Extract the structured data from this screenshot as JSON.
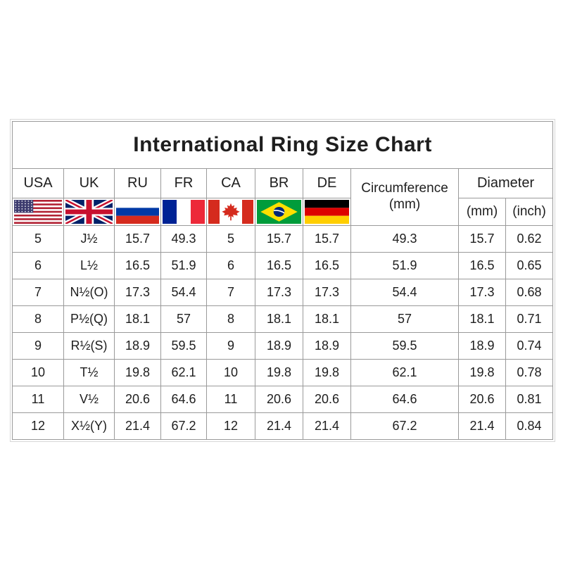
{
  "title": "International Ring Size Chart",
  "table": {
    "header": {
      "country_columns": [
        "USA",
        "UK",
        "RU",
        "FR",
        "CA",
        "BR",
        "DE"
      ],
      "circumference_label": "Circumference",
      "circumference_unit": "(mm)",
      "diameter_label": "Diameter",
      "diameter_units": [
        "(mm)",
        "(inch)"
      ]
    },
    "flag_icons": [
      "us-flag-icon",
      "uk-flag-icon",
      "ru-flag-icon",
      "fr-flag-icon",
      "ca-flag-icon",
      "br-flag-icon",
      "de-flag-icon"
    ]
  },
  "chart_data": {
    "type": "table",
    "title": "International Ring Size Chart",
    "columns": [
      "USA",
      "UK",
      "RU",
      "FR",
      "CA",
      "BR",
      "DE",
      "Circumference (mm)",
      "Diameter (mm)",
      "Diameter (inch)"
    ],
    "rows": [
      [
        "5",
        "J½",
        "15.7",
        "49.3",
        "5",
        "15.7",
        "15.7",
        "49.3",
        "15.7",
        "0.62"
      ],
      [
        "6",
        "L½",
        "16.5",
        "51.9",
        "6",
        "16.5",
        "16.5",
        "51.9",
        "16.5",
        "0.65"
      ],
      [
        "7",
        "N½(O)",
        "17.3",
        "54.4",
        "7",
        "17.3",
        "17.3",
        "54.4",
        "17.3",
        "0.68"
      ],
      [
        "8",
        "P½(Q)",
        "18.1",
        "57",
        "8",
        "18.1",
        "18.1",
        "57",
        "18.1",
        "0.71"
      ],
      [
        "9",
        "R½(S)",
        "18.9",
        "59.5",
        "9",
        "18.9",
        "18.9",
        "59.5",
        "18.9",
        "0.74"
      ],
      [
        "10",
        "T½",
        "19.8",
        "62.1",
        "10",
        "19.8",
        "19.8",
        "62.1",
        "19.8",
        "0.78"
      ],
      [
        "11",
        "V½",
        "20.6",
        "64.6",
        "11",
        "20.6",
        "20.6",
        "64.6",
        "20.6",
        "0.81"
      ],
      [
        "12",
        "X½(Y)",
        "21.4",
        "67.2",
        "12",
        "21.4",
        "21.4",
        "67.2",
        "21.4",
        "0.84"
      ]
    ]
  },
  "colors": {
    "border": "#9a9a9a",
    "text": "#1e1e1e",
    "us_red": "#B22234",
    "us_blue": "#3C3B6E",
    "uk_blue": "#012169",
    "uk_red": "#C8102E",
    "ru_blue": "#0039A6",
    "ru_red": "#D52B1E",
    "fr_blue": "#002395",
    "fr_red": "#ED2939",
    "ca_red": "#D52B1E",
    "br_green": "#009C3B",
    "br_yellow": "#FEDF00",
    "br_blue": "#002776",
    "de_black": "#000000",
    "de_red": "#DD0000",
    "de_gold": "#FFCE00"
  }
}
